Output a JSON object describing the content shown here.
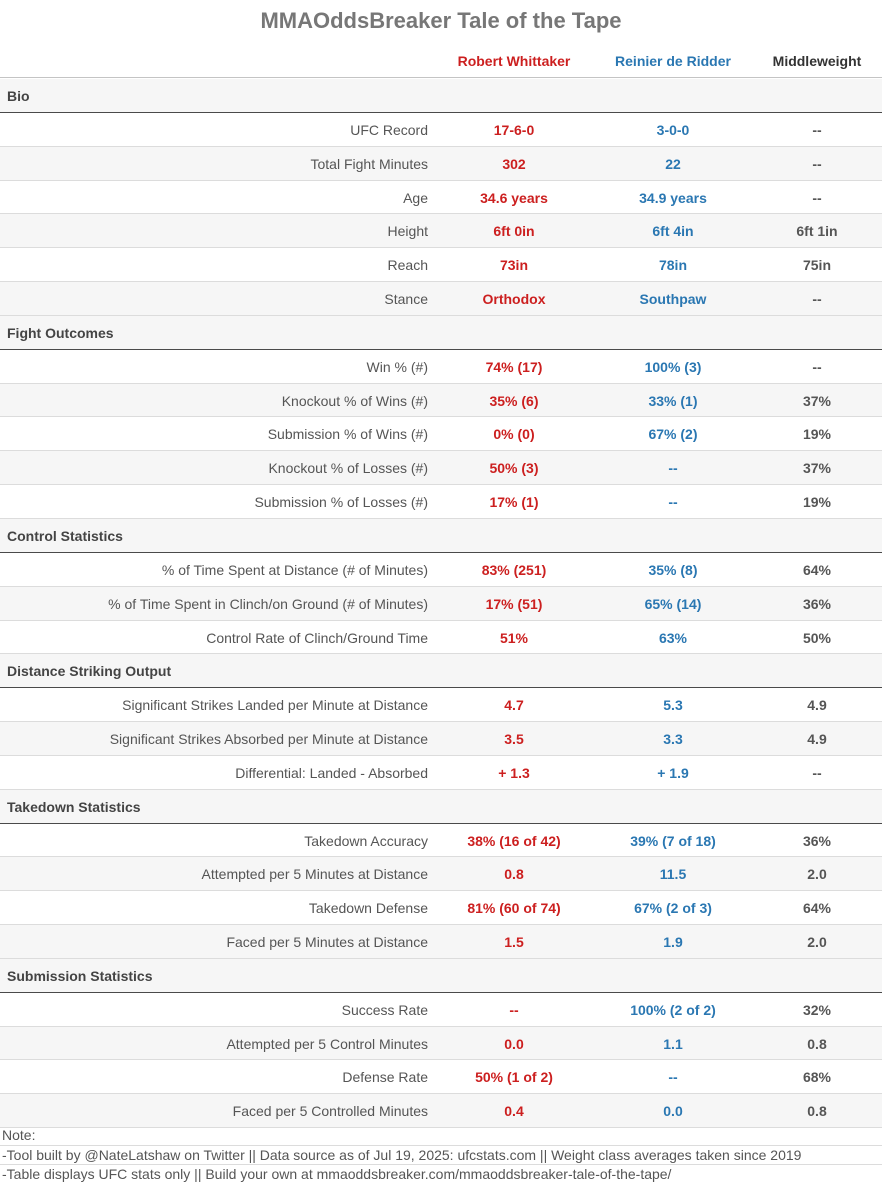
{
  "title": "MMAOddsBreaker Tale of the Tape",
  "header": {
    "fighter1": "Robert Whittaker",
    "fighter2": "Reinier de Ridder",
    "weight_class": "Middleweight"
  },
  "colors": {
    "fighter1": "#cc1f1f",
    "fighter2": "#2a77b2"
  },
  "sections": [
    {
      "name": "Bio",
      "rows": [
        {
          "label": "UFC Record",
          "f1": "17-6-0",
          "f2": "3-0-0",
          "avg": "--"
        },
        {
          "label": "Total Fight Minutes",
          "f1": "302",
          "f2": "22",
          "avg": "--"
        },
        {
          "label": "Age",
          "f1": "34.6 years",
          "f2": "34.9 years",
          "avg": "--"
        },
        {
          "label": "Height",
          "f1": "6ft 0in",
          "f2": "6ft 4in",
          "avg": "6ft 1in"
        },
        {
          "label": "Reach",
          "f1": "73in",
          "f2": "78in",
          "avg": "75in"
        },
        {
          "label": "Stance",
          "f1": "Orthodox",
          "f2": "Southpaw",
          "avg": "--"
        }
      ]
    },
    {
      "name": "Fight Outcomes",
      "rows": [
        {
          "label": "Win % (#)",
          "f1": "74% (17)",
          "f2": "100% (3)",
          "avg": "--"
        },
        {
          "label": "Knockout % of Wins (#)",
          "f1": "35% (6)",
          "f2": "33% (1)",
          "avg": "37%"
        },
        {
          "label": "Submission % of Wins (#)",
          "f1": "0% (0)",
          "f2": "67% (2)",
          "avg": "19%"
        },
        {
          "label": "Knockout % of Losses (#)",
          "f1": "50% (3)",
          "f2": "--",
          "avg": "37%"
        },
        {
          "label": "Submission % of Losses (#)",
          "f1": "17% (1)",
          "f2": "--",
          "avg": "19%"
        }
      ]
    },
    {
      "name": "Control Statistics",
      "rows": [
        {
          "label": "% of Time Spent at Distance (# of Minutes)",
          "f1": "83% (251)",
          "f2": "35% (8)",
          "avg": "64%"
        },
        {
          "label": "% of Time Spent in Clinch/on Ground (# of Minutes)",
          "f1": "17% (51)",
          "f2": "65% (14)",
          "avg": "36%"
        },
        {
          "label": "Control Rate of Clinch/Ground Time",
          "f1": "51%",
          "f2": "63%",
          "avg": "50%"
        }
      ]
    },
    {
      "name": "Distance Striking Output",
      "rows": [
        {
          "label": "Significant Strikes Landed per Minute at Distance",
          "f1": "4.7",
          "f2": "5.3",
          "avg": "4.9"
        },
        {
          "label": "Significant Strikes Absorbed per Minute at Distance",
          "f1": "3.5",
          "f2": "3.3",
          "avg": "4.9"
        },
        {
          "label": "Differential: Landed - Absorbed",
          "f1": "+ 1.3",
          "f2": "+ 1.9",
          "avg": "--"
        }
      ]
    },
    {
      "name": "Takedown Statistics",
      "rows": [
        {
          "label": "Takedown Accuracy",
          "f1": "38% (16 of 42)",
          "f2": "39% (7 of 18)",
          "avg": "36%"
        },
        {
          "label": "Attempted per 5 Minutes at Distance",
          "f1": "0.8",
          "f2": "11.5",
          "avg": "2.0"
        },
        {
          "label": "Takedown Defense",
          "f1": "81% (60 of 74)",
          "f2": "67% (2 of 3)",
          "avg": "64%"
        },
        {
          "label": "Faced per 5 Minutes at Distance",
          "f1": "1.5",
          "f2": "1.9",
          "avg": "2.0"
        }
      ]
    },
    {
      "name": "Submission Statistics",
      "rows": [
        {
          "label": "Success Rate",
          "f1": "--",
          "f2": "100% (2 of 2)",
          "avg": "32%"
        },
        {
          "label": "Attempted per 5 Control Minutes",
          "f1": "0.0",
          "f2": "1.1",
          "avg": "0.8"
        },
        {
          "label": "Defense Rate",
          "f1": "50% (1 of 2)",
          "f2": "--",
          "avg": "68%"
        },
        {
          "label": "Faced per 5 Controlled Minutes",
          "f1": "0.4",
          "f2": "0.0",
          "avg": "0.8"
        }
      ]
    }
  ],
  "footer": {
    "note_label": "Note:",
    "line1": "-Tool built by @NateLatshaw on Twitter || Data source as of Jul 19, 2025: ufcstats.com || Weight class averages taken since 2019",
    "line2": "-Table displays UFC stats only || Build your own at mmaoddsbreaker.com/mmaoddsbreaker-tale-of-the-tape/"
  }
}
